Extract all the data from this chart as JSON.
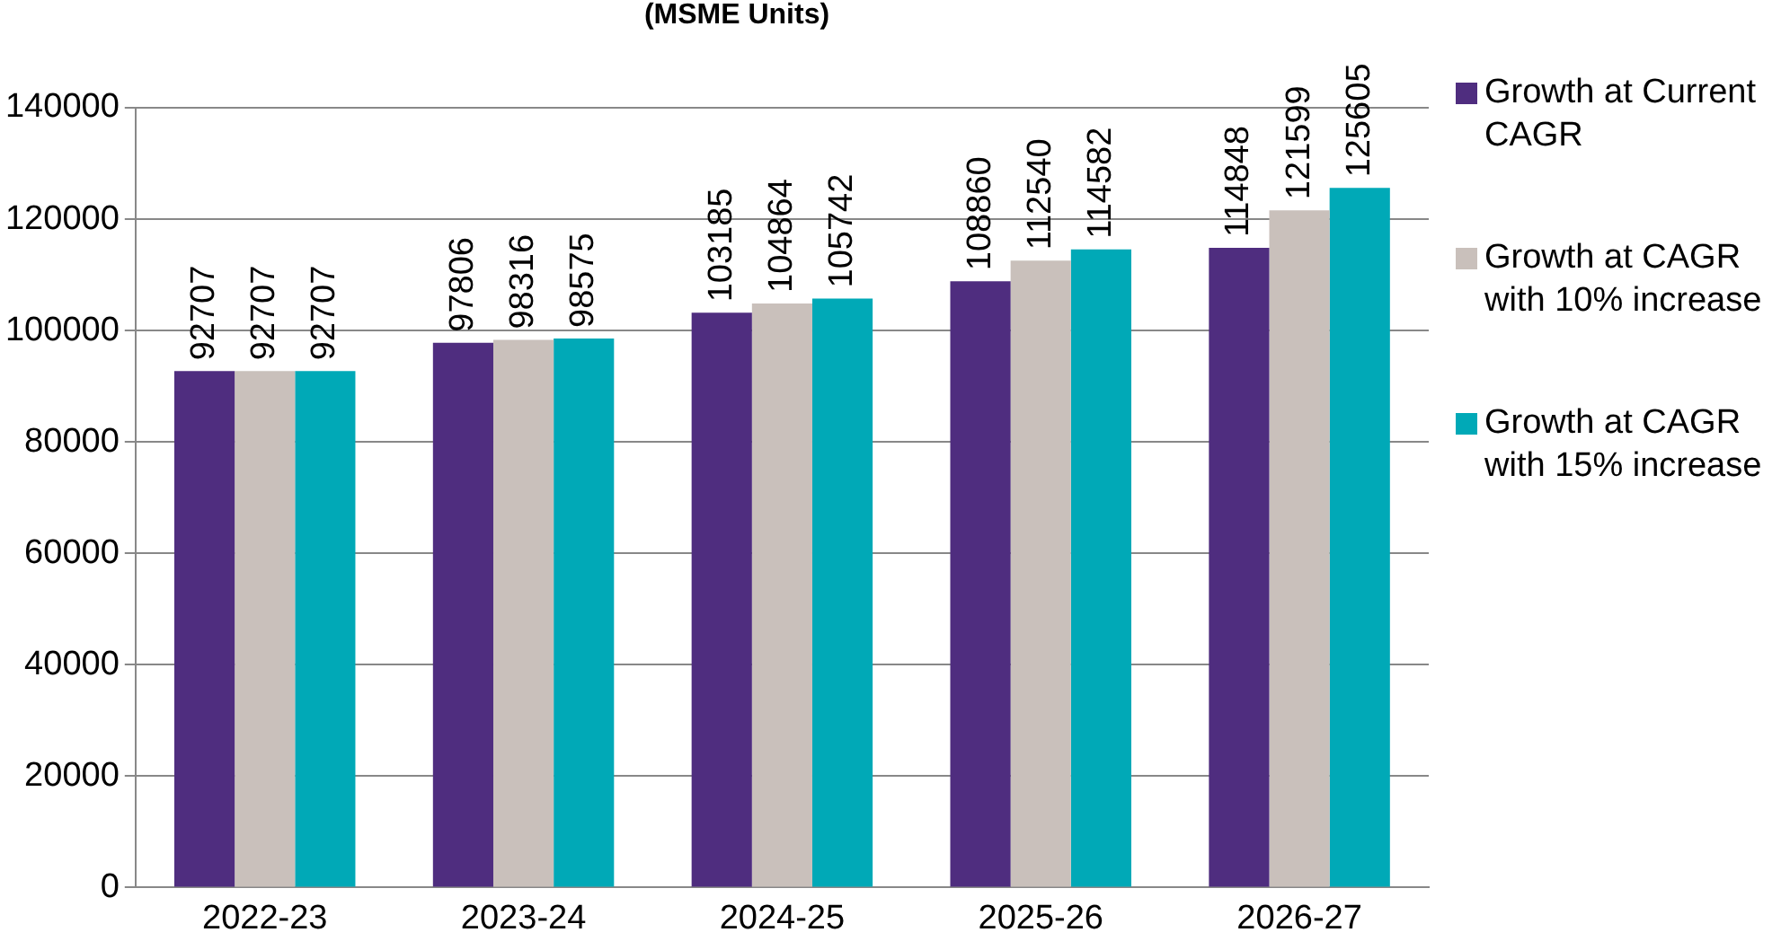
{
  "chart_data": {
    "type": "bar",
    "title": "(MSME Units)",
    "categories": [
      "2022-23",
      "2023-24",
      "2024-25",
      "2025-26",
      "2026-27"
    ],
    "series": [
      {
        "name": "Growth at Current CAGR",
        "color": "#4f2d7f",
        "values": [
          92707,
          97806,
          103185,
          108860,
          114848
        ]
      },
      {
        "name": "Growth at CAGR with 10% increase",
        "color": "#c9c0bb",
        "values": [
          92707,
          98316,
          104864,
          112540,
          121599
        ]
      },
      {
        "name": "Growth at CAGR with 15% increase",
        "color": "#00a9b7",
        "values": [
          92707,
          98575,
          105742,
          114582,
          125605
        ]
      }
    ],
    "ylim": [
      0,
      140000
    ],
    "yticks": [
      0,
      20000,
      40000,
      60000,
      80000,
      100000,
      120000,
      140000
    ],
    "grid": "y",
    "legend": "right",
    "data_labels": true
  }
}
